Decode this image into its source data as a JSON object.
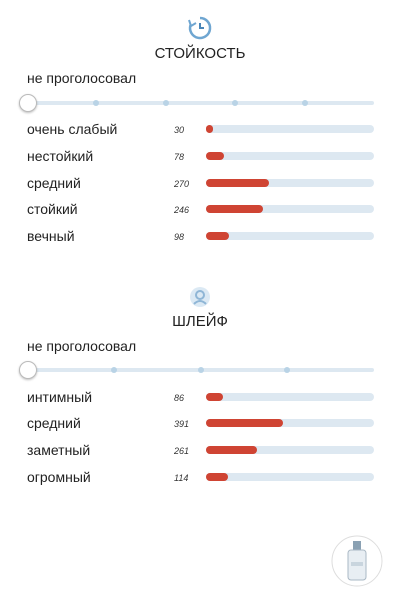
{
  "sections": [
    {
      "title": "СТОЙКОСТЬ",
      "status": "не проголосовал",
      "options": [
        {
          "label": "очень слабый",
          "count": 30
        },
        {
          "label": "нестойкий",
          "count": 78
        },
        {
          "label": "средний",
          "count": 270
        },
        {
          "label": "стойкий",
          "count": 246
        },
        {
          "label": "вечный",
          "count": 98
        }
      ]
    },
    {
      "title": "ШЛЕЙФ",
      "status": "не проголосовал",
      "options": [
        {
          "label": "интимный",
          "count": 86
        },
        {
          "label": "средний",
          "count": 391
        },
        {
          "label": "заметный",
          "count": 261
        },
        {
          "label": "огромный",
          "count": 114
        }
      ]
    }
  ]
}
